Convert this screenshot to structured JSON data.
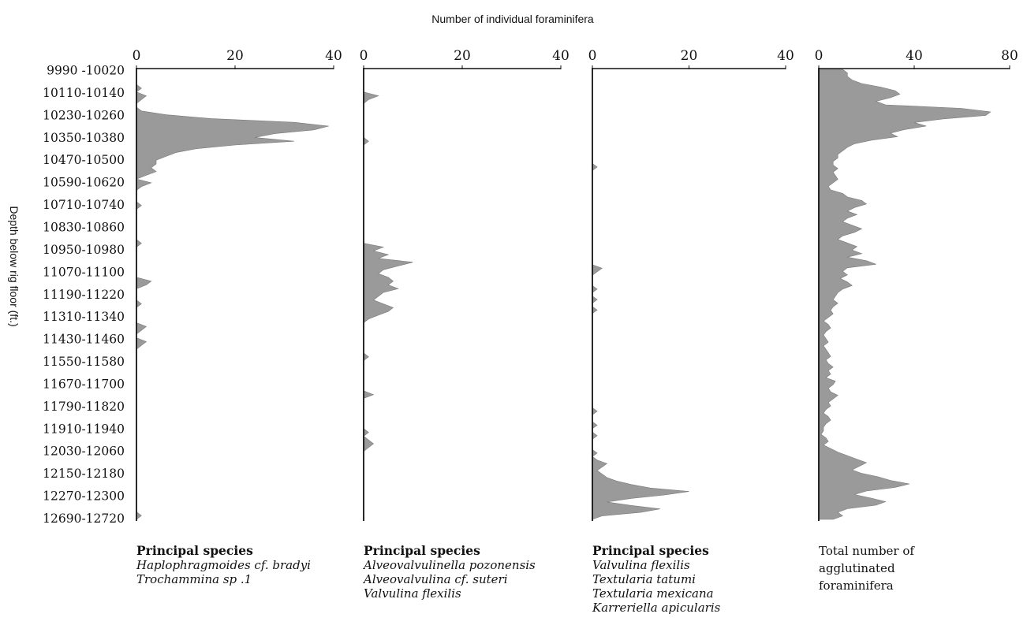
{
  "chart_data": {
    "type": "area",
    "title": "Number of individual foraminifera",
    "ylabel": "Depth below rig floor (ft.)",
    "depth_labels": [
      "9990 -10020",
      "10110-10140",
      "10230-10260",
      "10350-10380",
      "10470-10500",
      "10590-10620",
      "10710-10740",
      "10830-10860",
      "10950-10980",
      "11070-11100",
      "11190-11220",
      "11310-11340",
      "11430-11460",
      "11550-11580",
      "11670-11700",
      "11790-11820",
      "11910-11940",
      "12030-12060",
      "12150-12180",
      "12270-12300",
      "12690-12720"
    ],
    "panels": [
      {
        "xlim": [
          0,
          40
        ],
        "xticks": [
          "0",
          "20",
          "40"
        ],
        "caption_title": "Principal species",
        "caption_lines": [
          "Haplophragmoides cf. bradyi",
          "Trochammina sp .1"
        ],
        "caption_italic": true,
        "values": [
          0,
          0,
          0,
          0,
          0,
          1,
          0,
          2,
          1,
          0,
          0,
          1,
          6,
          15,
          32,
          39,
          36,
          28,
          24,
          32,
          20,
          12,
          8,
          6,
          4,
          4,
          3,
          4,
          2,
          0,
          3,
          1,
          0,
          0,
          0,
          0,
          1,
          0,
          0,
          0,
          0,
          0,
          0,
          0,
          0,
          0,
          1,
          0,
          0,
          0,
          0,
          0,
          0,
          0,
          0,
          0,
          3,
          2,
          0,
          0,
          0,
          0,
          1,
          0,
          0,
          0,
          0,
          0,
          2,
          1,
          0,
          0,
          2,
          1,
          0,
          0,
          0,
          0,
          0,
          0,
          0,
          0,
          0,
          0,
          0,
          0,
          0,
          0,
          0,
          0,
          0,
          0,
          0,
          0,
          0,
          0,
          0,
          0,
          0,
          0,
          0,
          0,
          0,
          0,
          0,
          0,
          0,
          0,
          0,
          0,
          0,
          0,
          0,
          0,
          0,
          0,
          0,
          0,
          1,
          0
        ]
      },
      {
        "xlim": [
          0,
          40
        ],
        "xticks": [
          "0",
          "20",
          "40"
        ],
        "caption_title": "Principal species",
        "caption_lines": [
          "Alveovalvulinella pozonensis",
          "Alveovalvulina cf. suteri",
          "Valvulina flexilis"
        ],
        "caption_italic": true,
        "values": [
          0,
          0,
          0,
          0,
          0,
          0,
          0,
          3,
          1,
          0,
          0,
          0,
          0,
          0,
          0,
          0,
          0,
          0,
          0,
          1,
          0,
          0,
          0,
          0,
          0,
          0,
          0,
          0,
          0,
          0,
          0,
          0,
          0,
          0,
          0,
          0,
          0,
          0,
          0,
          0,
          0,
          0,
          0,
          0,
          0,
          0,
          0,
          4,
          2,
          5,
          3,
          10,
          7,
          4,
          3,
          5,
          6,
          5,
          7,
          4,
          3,
          2,
          4,
          6,
          5,
          3,
          1,
          0,
          0,
          0,
          0,
          0,
          0,
          0,
          0,
          0,
          1,
          0,
          0,
          0,
          0,
          0,
          0,
          0,
          0,
          0,
          2,
          0,
          0,
          0,
          0,
          0,
          0,
          0,
          0,
          0,
          1,
          0,
          1,
          2,
          1,
          0,
          0,
          0,
          0,
          0,
          0,
          0,
          0,
          0,
          0,
          0,
          0,
          0,
          0,
          0,
          0,
          0,
          0,
          0
        ]
      },
      {
        "xlim": [
          0,
          40
        ],
        "xticks": [
          "0",
          "20",
          "40"
        ],
        "caption_title": "Principal species",
        "caption_lines": [
          "Valvulina flexilis",
          "Textularia tatumi",
          "Textularia mexicana",
          "Karreriella apicularis"
        ],
        "caption_italic": true,
        "values": [
          0,
          0,
          0,
          0,
          0,
          0,
          0,
          0,
          0,
          0,
          0,
          0,
          0,
          0,
          0,
          0,
          0,
          0,
          0,
          0,
          0,
          0,
          0,
          0,
          0,
          0,
          0,
          0,
          1,
          0,
          0,
          0,
          0,
          0,
          0,
          0,
          0,
          0,
          0,
          0,
          0,
          0,
          0,
          0,
          0,
          0,
          0,
          0,
          0,
          0,
          0,
          0,
          0,
          0,
          0,
          0,
          0,
          2,
          1,
          0,
          0,
          0,
          0,
          1,
          0,
          0,
          1,
          0,
          0,
          1,
          0,
          0,
          0,
          0,
          0,
          0,
          0,
          0,
          0,
          0,
          0,
          0,
          0,
          0,
          0,
          0,
          0,
          0,
          0,
          0,
          0,
          0,
          0,
          0,
          0,
          0,
          0,
          0,
          1,
          0,
          0,
          0,
          1,
          0,
          0,
          1,
          0,
          0,
          0,
          0,
          1,
          0,
          1,
          3,
          2,
          1,
          2,
          3,
          5,
          8,
          12,
          20,
          15,
          8,
          3,
          8,
          14,
          10,
          2,
          0
        ]
      },
      {
        "xlim": [
          0,
          80
        ],
        "xticks": [
          "0",
          "40",
          "80"
        ],
        "caption_title": "",
        "caption_lines": [
          "Total number of",
          "agglutinated",
          "foraminifera"
        ],
        "caption_italic": false,
        "values": [
          10,
          12,
          12,
          14,
          18,
          26,
          32,
          34,
          30,
          24,
          28,
          60,
          72,
          70,
          52,
          40,
          45,
          36,
          30,
          33,
          22,
          15,
          12,
          10,
          8,
          8,
          6,
          6,
          8,
          6,
          7,
          8,
          6,
          4,
          5,
          10,
          12,
          18,
          20,
          15,
          12,
          16,
          12,
          10,
          14,
          18,
          15,
          10,
          8,
          12,
          16,
          14,
          18,
          12,
          20,
          24,
          12,
          10,
          12,
          9,
          12,
          14,
          10,
          8,
          7,
          6,
          8,
          6,
          5,
          6,
          4,
          2,
          4,
          5,
          3,
          2,
          3,
          4,
          2,
          3,
          4,
          5,
          3,
          4,
          6,
          4,
          5,
          3,
          7,
          6,
          4,
          5,
          8,
          6,
          4,
          5,
          3,
          2,
          4,
          5,
          3,
          2,
          2,
          1,
          3,
          4,
          2,
          5,
          8,
          12,
          16,
          20,
          17,
          14,
          18,
          25,
          30,
          38,
          32,
          20,
          15,
          22,
          28,
          24,
          12,
          8,
          10,
          6
        ]
      }
    ]
  }
}
